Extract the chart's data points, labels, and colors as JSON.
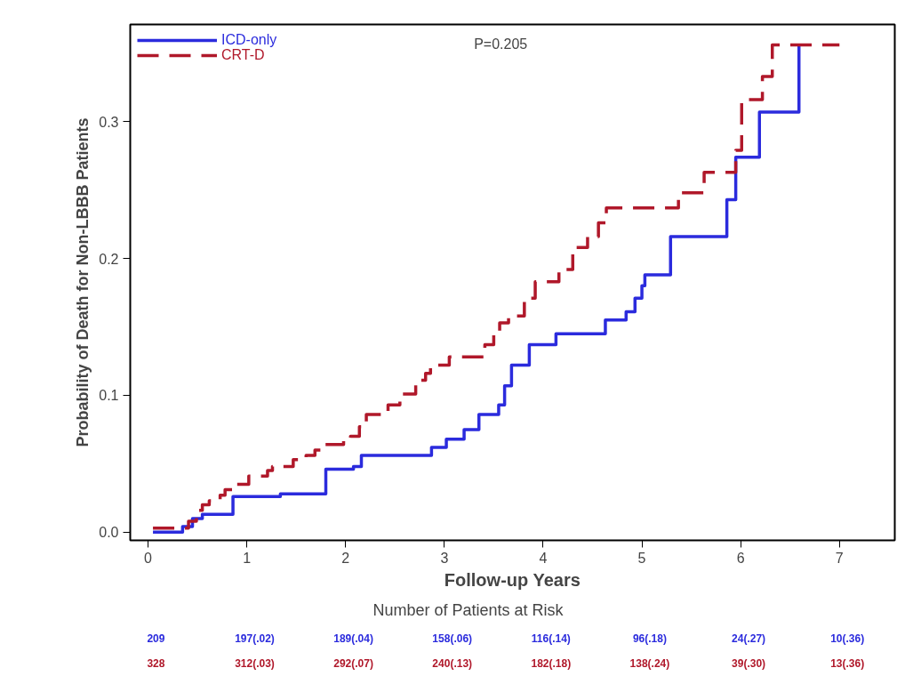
{
  "chart_data": {
    "type": "step",
    "xlabel": "Follow-up Years",
    "ylabel": "Probability of Death for Non-LBBB Patients",
    "xlim": [
      -0.18,
      7.56
    ],
    "ylim": [
      -0.006,
      0.371
    ],
    "xticks": [
      0,
      1,
      2,
      3,
      4,
      5,
      6,
      7
    ],
    "yticks": [
      {
        "value": 0,
        "label": "0.0"
      },
      0.1,
      0.2,
      0.3
    ],
    "grid": false,
    "legend": "top left",
    "marker": "none",
    "series": [
      {
        "name": "ICD-only",
        "color": "#2b2bdd",
        "line_style": "solid",
        "x": [
          0.05,
          0.35,
          0.45,
          0.55,
          0.86,
          1.34,
          1.8,
          2.08,
          2.16,
          2.87,
          3.02,
          3.2,
          3.35,
          3.55,
          3.61,
          3.68,
          3.86,
          4.13,
          4.63,
          4.84,
          4.93,
          5.0,
          5.03,
          5.29,
          5.86,
          5.95,
          6.19,
          6.59
        ],
        "values": [
          0,
          0.004,
          0.01,
          0.013,
          0.026,
          0.028,
          0.046,
          0.048,
          0.056,
          0.062,
          0.068,
          0.075,
          0.086,
          0.093,
          0.107,
          0.122,
          0.137,
          0.145,
          0.155,
          0.161,
          0.171,
          0.18,
          0.188,
          0.216,
          0.243,
          0.274,
          0.307,
          0.356
        ]
      },
      {
        "name": "CRT-D",
        "color": "#b0182a",
        "line_style": "dashed",
        "x": [
          0.05,
          0.41,
          0.49,
          0.55,
          0.62,
          0.73,
          0.78,
          0.89,
          1.02,
          1.21,
          1.26,
          1.47,
          1.6,
          1.69,
          1.76,
          1.98,
          2.05,
          2.14,
          2.21,
          2.43,
          2.55,
          2.71,
          2.81,
          2.86,
          3.05,
          3.41,
          3.5,
          3.56,
          3.65,
          3.81,
          3.92,
          4.16,
          4.3,
          4.45,
          4.56,
          4.64,
          5.37,
          5.63,
          5.95,
          6.01,
          6.22,
          6.32,
          7.0
        ],
        "values": [
          0.003,
          0.008,
          0.016,
          0.02,
          0.023,
          0.027,
          0.031,
          0.035,
          0.041,
          0.045,
          0.048,
          0.053,
          0.056,
          0.06,
          0.064,
          0.067,
          0.07,
          0.077,
          0.086,
          0.093,
          0.101,
          0.111,
          0.116,
          0.122,
          0.128,
          0.137,
          0.145,
          0.153,
          0.158,
          0.171,
          0.183,
          0.192,
          0.208,
          0.216,
          0.226,
          0.237,
          0.248,
          0.263,
          0.279,
          0.316,
          0.333,
          0.356,
          0.356
        ]
      }
    ],
    "annotations": [
      "P=0.205",
      "Number of Patients at Risk",
      "209",
      "197(.02)",
      "189(.04)",
      "158(.06)",
      "116(.14)",
      "96(.18)",
      "24(.27)",
      "10(.36)",
      "328",
      "312(.03)",
      "292(.07)",
      "240(.13)",
      "182(.18)",
      "138(.24)",
      "39(.30)",
      "13(.36)"
    ]
  }
}
